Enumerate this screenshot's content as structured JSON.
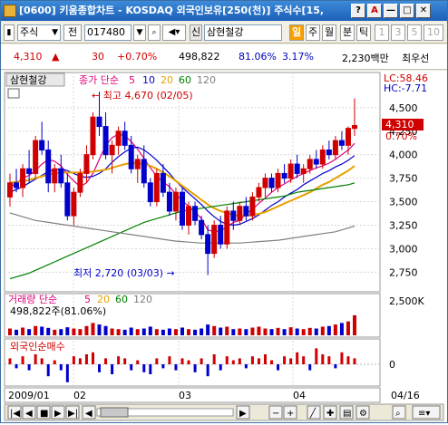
{
  "window": {
    "title": "[0600] 키움종합차트 - KOSDAQ 외국인보유[250(천)] 주식수[15,",
    "buttons": [
      "?",
      "A",
      "—",
      "□",
      "✕"
    ]
  },
  "toolbar": {
    "type_label": "주식",
    "prev_label": "전",
    "code": "017480",
    "stock_name_prefix": "신",
    "stock_name": "삼현철강",
    "periods": [
      "일",
      "주",
      "월",
      "분",
      "틱"
    ],
    "numbers": [
      "1",
      "3",
      "5",
      "10"
    ]
  },
  "pricebar": {
    "price": "4,310",
    "arrow": "▲",
    "change": "30",
    "change_pct": "+0.70%",
    "volume": "498,822",
    "ratio": "81.06%",
    "turnover": "3.17%",
    "amount": "2,230백만",
    "extra": "최우선"
  },
  "chart": {
    "stock_label": "삼현철강",
    "ma_label": "종가 단순",
    "ma_periods": [
      "5",
      "10",
      "20",
      "60",
      "120"
    ],
    "ma_colors": [
      "#e0007a",
      "#0000cc",
      "#e8a000",
      "#008000",
      "#808080"
    ],
    "lc_text": "LC:58.46",
    "hc_text": "HC:-7.71",
    "price_tag": "4,310",
    "pct_tag": "0.70%",
    "high_note": "최고 4,670 (02/05)",
    "low_note": "최저 2,720 (03/03)",
    "volume_label": "거래량 단순",
    "volume_ma_periods": [
      "5",
      "20",
      "60",
      "120"
    ],
    "volume_value": "498,822주(81.06%)",
    "foreign_label": "외국인순매수",
    "x_labels": [
      "2009/01",
      "02",
      "03",
      "04",
      "04/16"
    ]
  },
  "chart_data": {
    "type": "candlestick",
    "price_axis": [
      "4,500",
      "4,250",
      "4,000",
      "3,750",
      "3,500",
      "3,250",
      "3,000",
      "2,750"
    ],
    "price_range": [
      2580,
      4720
    ],
    "volume_axis": [
      "2,500K",
      "0"
    ],
    "foreign_axis": [
      "0"
    ],
    "candles": [
      [
        3550,
        3800,
        3450,
        3700
      ],
      [
        3700,
        3850,
        3600,
        3650
      ],
      [
        3650,
        3900,
        3550,
        3850
      ],
      [
        3850,
        4050,
        3700,
        3800
      ],
      [
        3800,
        4200,
        3750,
        4150
      ],
      [
        4150,
        4350,
        4000,
        4050
      ],
      [
        4050,
        4150,
        3600,
        3700
      ],
      [
        3700,
        3900,
        3600,
        3850
      ],
      [
        3850,
        4000,
        3650,
        3700
      ],
      [
        3700,
        3800,
        3300,
        3350
      ],
      [
        3350,
        3650,
        3250,
        3600
      ],
      [
        3600,
        3850,
        3550,
        3800
      ],
      [
        3800,
        4100,
        3700,
        4000
      ],
      [
        4000,
        4450,
        3950,
        4400
      ],
      [
        4400,
        4670,
        4200,
        4300
      ],
      [
        4300,
        4450,
        3950,
        4000
      ],
      [
        4000,
        4150,
        3800,
        4100
      ],
      [
        4100,
        4300,
        4000,
        4250
      ],
      [
        4250,
        4350,
        4050,
        4100
      ],
      [
        4100,
        4200,
        3800,
        3850
      ],
      [
        3850,
        4000,
        3700,
        3950
      ],
      [
        3950,
        4100,
        3650,
        3700
      ],
      [
        3700,
        3750,
        3450,
        3500
      ],
      [
        3500,
        3850,
        3450,
        3800
      ],
      [
        3800,
        3900,
        3550,
        3600
      ],
      [
        3600,
        3700,
        3350,
        3400
      ],
      [
        3400,
        3650,
        3300,
        3600
      ],
      [
        3600,
        3650,
        3200,
        3250
      ],
      [
        3250,
        3500,
        3150,
        3450
      ],
      [
        3450,
        3500,
        3250,
        3300
      ],
      [
        3300,
        3350,
        3100,
        3150
      ],
      [
        3150,
        3250,
        2720,
        2950
      ],
      [
        2950,
        3300,
        2900,
        3250
      ],
      [
        3250,
        3350,
        3000,
        3050
      ],
      [
        3050,
        3450,
        3000,
        3400
      ],
      [
        3400,
        3500,
        3200,
        3300
      ],
      [
        3300,
        3500,
        3250,
        3450
      ],
      [
        3450,
        3550,
        3300,
        3350
      ],
      [
        3350,
        3600,
        3300,
        3550
      ],
      [
        3550,
        3700,
        3500,
        3650
      ],
      [
        3650,
        3800,
        3550,
        3750
      ],
      [
        3750,
        3800,
        3600,
        3650
      ],
      [
        3650,
        3850,
        3600,
        3800
      ],
      [
        3800,
        3900,
        3700,
        3750
      ],
      [
        3750,
        3950,
        3700,
        3900
      ],
      [
        3900,
        4000,
        3750,
        3800
      ],
      [
        3800,
        3900,
        3700,
        3850
      ],
      [
        3850,
        4000,
        3800,
        3950
      ],
      [
        3950,
        4050,
        3850,
        3900
      ],
      [
        3900,
        4100,
        3850,
        4050
      ],
      [
        4050,
        4150,
        3950,
        4000
      ],
      [
        4000,
        4200,
        3950,
        4150
      ],
      [
        4150,
        4250,
        4050,
        4100
      ],
      [
        4100,
        4300,
        4000,
        4280
      ],
      [
        4280,
        4600,
        4200,
        4310
      ]
    ],
    "ma_series": [
      {
        "name": "5",
        "values": [
          3650,
          3700,
          3750,
          3780,
          3830,
          3900,
          3950,
          3930,
          3880,
          3790,
          3720,
          3660,
          3700,
          3800,
          3950,
          4100,
          4180,
          4220,
          4200,
          4140,
          4060,
          3960,
          3860,
          3770,
          3710,
          3660,
          3580,
          3510,
          3450,
          3390,
          3320,
          3200,
          3180,
          3190,
          3230,
          3280,
          3300,
          3370,
          3420,
          3480,
          3540,
          3600,
          3650,
          3690,
          3730,
          3770,
          3800,
          3830,
          3860,
          3880,
          3910,
          3950,
          4000,
          4050,
          4120
        ]
      },
      {
        "name": "10",
        "values": [
          3600,
          3630,
          3660,
          3700,
          3740,
          3780,
          3820,
          3840,
          3850,
          3830,
          3800,
          3770,
          3760,
          3770,
          3800,
          3850,
          3920,
          3980,
          4030,
          4070,
          4080,
          4050,
          4000,
          3940,
          3870,
          3800,
          3720,
          3650,
          3590,
          3530,
          3470,
          3400,
          3340,
          3290,
          3260,
          3250,
          3260,
          3290,
          3320,
          3360,
          3410,
          3460,
          3500,
          3550,
          3590,
          3630,
          3680,
          3720,
          3760,
          3800,
          3830,
          3870,
          3900,
          3940,
          3990
        ]
      },
      {
        "name": "20",
        "values": [
          3700,
          3710,
          3720,
          3730,
          3750,
          3770,
          3790,
          3800,
          3810,
          3810,
          3810,
          3810,
          3815,
          3820,
          3830,
          3840,
          3860,
          3880,
          3900,
          3910,
          3910,
          3900,
          3880,
          3850,
          3810,
          3770,
          3720,
          3670,
          3620,
          3570,
          3520,
          3470,
          3430,
          3400,
          3380,
          3360,
          3350,
          3350,
          3360,
          3370,
          3390,
          3420,
          3450,
          3480,
          3510,
          3540,
          3570,
          3600,
          3640,
          3680,
          3710,
          3750,
          3790,
          3830,
          3880
        ]
      },
      {
        "name": "60",
        "values": [
          2680,
          2700,
          2720,
          2740,
          2770,
          2800,
          2830,
          2860,
          2890,
          2920,
          2950,
          2980,
          3010,
          3040,
          3070,
          3100,
          3130,
          3160,
          3190,
          3220,
          3250,
          3280,
          3300,
          3320,
          3340,
          3360,
          3380,
          3400,
          3410,
          3420,
          3430,
          3440,
          3450,
          3460,
          3470,
          3480,
          3490,
          3500,
          3510,
          3520,
          3530,
          3540,
          3550,
          3560,
          3580,
          3600,
          3610,
          3620,
          3630,
          3640,
          3650,
          3660,
          3670,
          3680,
          3700
        ]
      },
      {
        "name": "120",
        "values": [
          3380,
          3360,
          3340,
          3320,
          3300,
          3290,
          3280,
          3270,
          3260,
          3250,
          3240,
          3230,
          3220,
          3210,
          3200,
          3190,
          3180,
          3170,
          3160,
          3150,
          3140,
          3130,
          3120,
          3110,
          3100,
          3090,
          3080,
          3075,
          3070,
          3065,
          3060,
          3060,
          3060,
          3060,
          3060,
          3060,
          3060,
          3065,
          3070,
          3075,
          3080,
          3085,
          3090,
          3100,
          3110,
          3120,
          3130,
          3140,
          3150,
          3160,
          3170,
          3180,
          3200,
          3220,
          3240
        ]
      }
    ],
    "volume": [
      0.22,
      0.18,
      0.25,
      0.2,
      0.3,
      0.28,
      0.24,
      0.18,
      0.2,
      0.26,
      0.22,
      0.2,
      0.3,
      0.4,
      0.35,
      0.3,
      0.22,
      0.2,
      0.18,
      0.25,
      0.2,
      0.22,
      0.28,
      0.2,
      0.18,
      0.22,
      0.2,
      0.25,
      0.2,
      0.18,
      0.22,
      0.35,
      0.3,
      0.25,
      0.28,
      0.2,
      0.22,
      0.2,
      0.25,
      0.28,
      0.22,
      0.2,
      0.24,
      0.2,
      0.26,
      0.22,
      0.2,
      0.24,
      0.22,
      0.28,
      0.3,
      0.35,
      0.4,
      0.45,
      0.65
    ],
    "foreign": [
      0.3,
      -0.2,
      0.4,
      -0.3,
      0.5,
      0.3,
      -0.6,
      0.2,
      -0.3,
      -0.9,
      0.4,
      0.3,
      0.5,
      0.6,
      -0.4,
      0.3,
      -0.5,
      0.4,
      0.3,
      -0.3,
      0.2,
      -0.4,
      -0.5,
      0.3,
      -0.2,
      0.4,
      -0.3,
      0.3,
      0.2,
      -0.4,
      0.3,
      -0.6,
      0.5,
      -0.3,
      0.4,
      0.2,
      0.3,
      -0.2,
      0.4,
      0.3,
      0.5,
      0.2,
      -0.3,
      0.4,
      0.3,
      0.6,
      0.4,
      -0.3,
      0.8,
      0.5,
      0.4,
      -0.2,
      0.6,
      0.4,
      0.3
    ]
  }
}
